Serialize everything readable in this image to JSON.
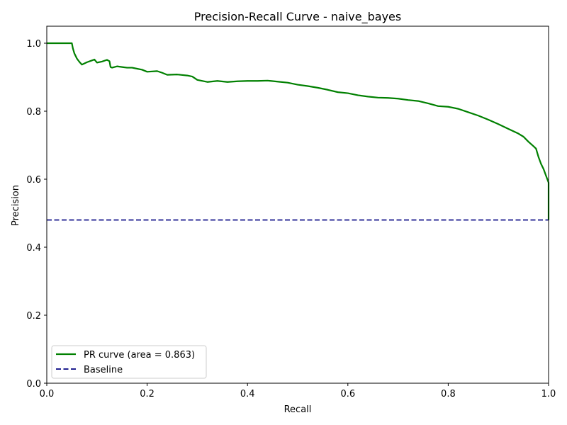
{
  "chart_data": {
    "type": "line",
    "title": "Precision-Recall Curve - naive_bayes",
    "xlabel": "Recall",
    "ylabel": "Precision",
    "xlim": [
      0.0,
      1.0
    ],
    "ylim": [
      0.0,
      1.05
    ],
    "xticks": [
      "0.0",
      "0.2",
      "0.4",
      "0.6",
      "0.8",
      "1.0"
    ],
    "yticks": [
      "0.0",
      "0.2",
      "0.4",
      "0.6",
      "0.8",
      "1.0"
    ],
    "grid": false,
    "legend_position": "lower-left",
    "series": [
      {
        "name": "PR curve (area = 0.863)",
        "color": "#008000",
        "style": "solid",
        "x": [
          0.0,
          0.05,
          0.052,
          0.055,
          0.06,
          0.065,
          0.07,
          0.08,
          0.095,
          0.1,
          0.11,
          0.12,
          0.125,
          0.127,
          0.13,
          0.14,
          0.15,
          0.16,
          0.17,
          0.18,
          0.19,
          0.2,
          0.22,
          0.23,
          0.24,
          0.26,
          0.28,
          0.29,
          0.3,
          0.32,
          0.34,
          0.36,
          0.38,
          0.4,
          0.42,
          0.44,
          0.46,
          0.48,
          0.5,
          0.52,
          0.54,
          0.56,
          0.58,
          0.6,
          0.62,
          0.64,
          0.66,
          0.68,
          0.7,
          0.72,
          0.74,
          0.76,
          0.78,
          0.8,
          0.82,
          0.84,
          0.86,
          0.88,
          0.9,
          0.92,
          0.94,
          0.95,
          0.96,
          0.97,
          0.975,
          0.98,
          0.985,
          0.99,
          0.995,
          1.0,
          1.0
        ],
        "y": [
          1.0,
          1.0,
          0.985,
          0.97,
          0.955,
          0.945,
          0.937,
          0.944,
          0.952,
          0.943,
          0.946,
          0.951,
          0.947,
          0.93,
          0.928,
          0.932,
          0.93,
          0.928,
          0.928,
          0.925,
          0.922,
          0.916,
          0.918,
          0.913,
          0.907,
          0.908,
          0.905,
          0.902,
          0.892,
          0.886,
          0.889,
          0.886,
          0.888,
          0.889,
          0.889,
          0.89,
          0.887,
          0.884,
          0.878,
          0.874,
          0.869,
          0.863,
          0.856,
          0.853,
          0.847,
          0.843,
          0.84,
          0.839,
          0.837,
          0.833,
          0.83,
          0.823,
          0.815,
          0.813,
          0.807,
          0.797,
          0.787,
          0.775,
          0.762,
          0.748,
          0.734,
          0.725,
          0.71,
          0.697,
          0.69,
          0.665,
          0.645,
          0.63,
          0.61,
          0.59,
          0.48
        ]
      },
      {
        "name": "Baseline",
        "color": "#000080",
        "style": "dashed",
        "x": [
          0.0,
          1.0
        ],
        "y": [
          0.48,
          0.48
        ]
      }
    ]
  }
}
